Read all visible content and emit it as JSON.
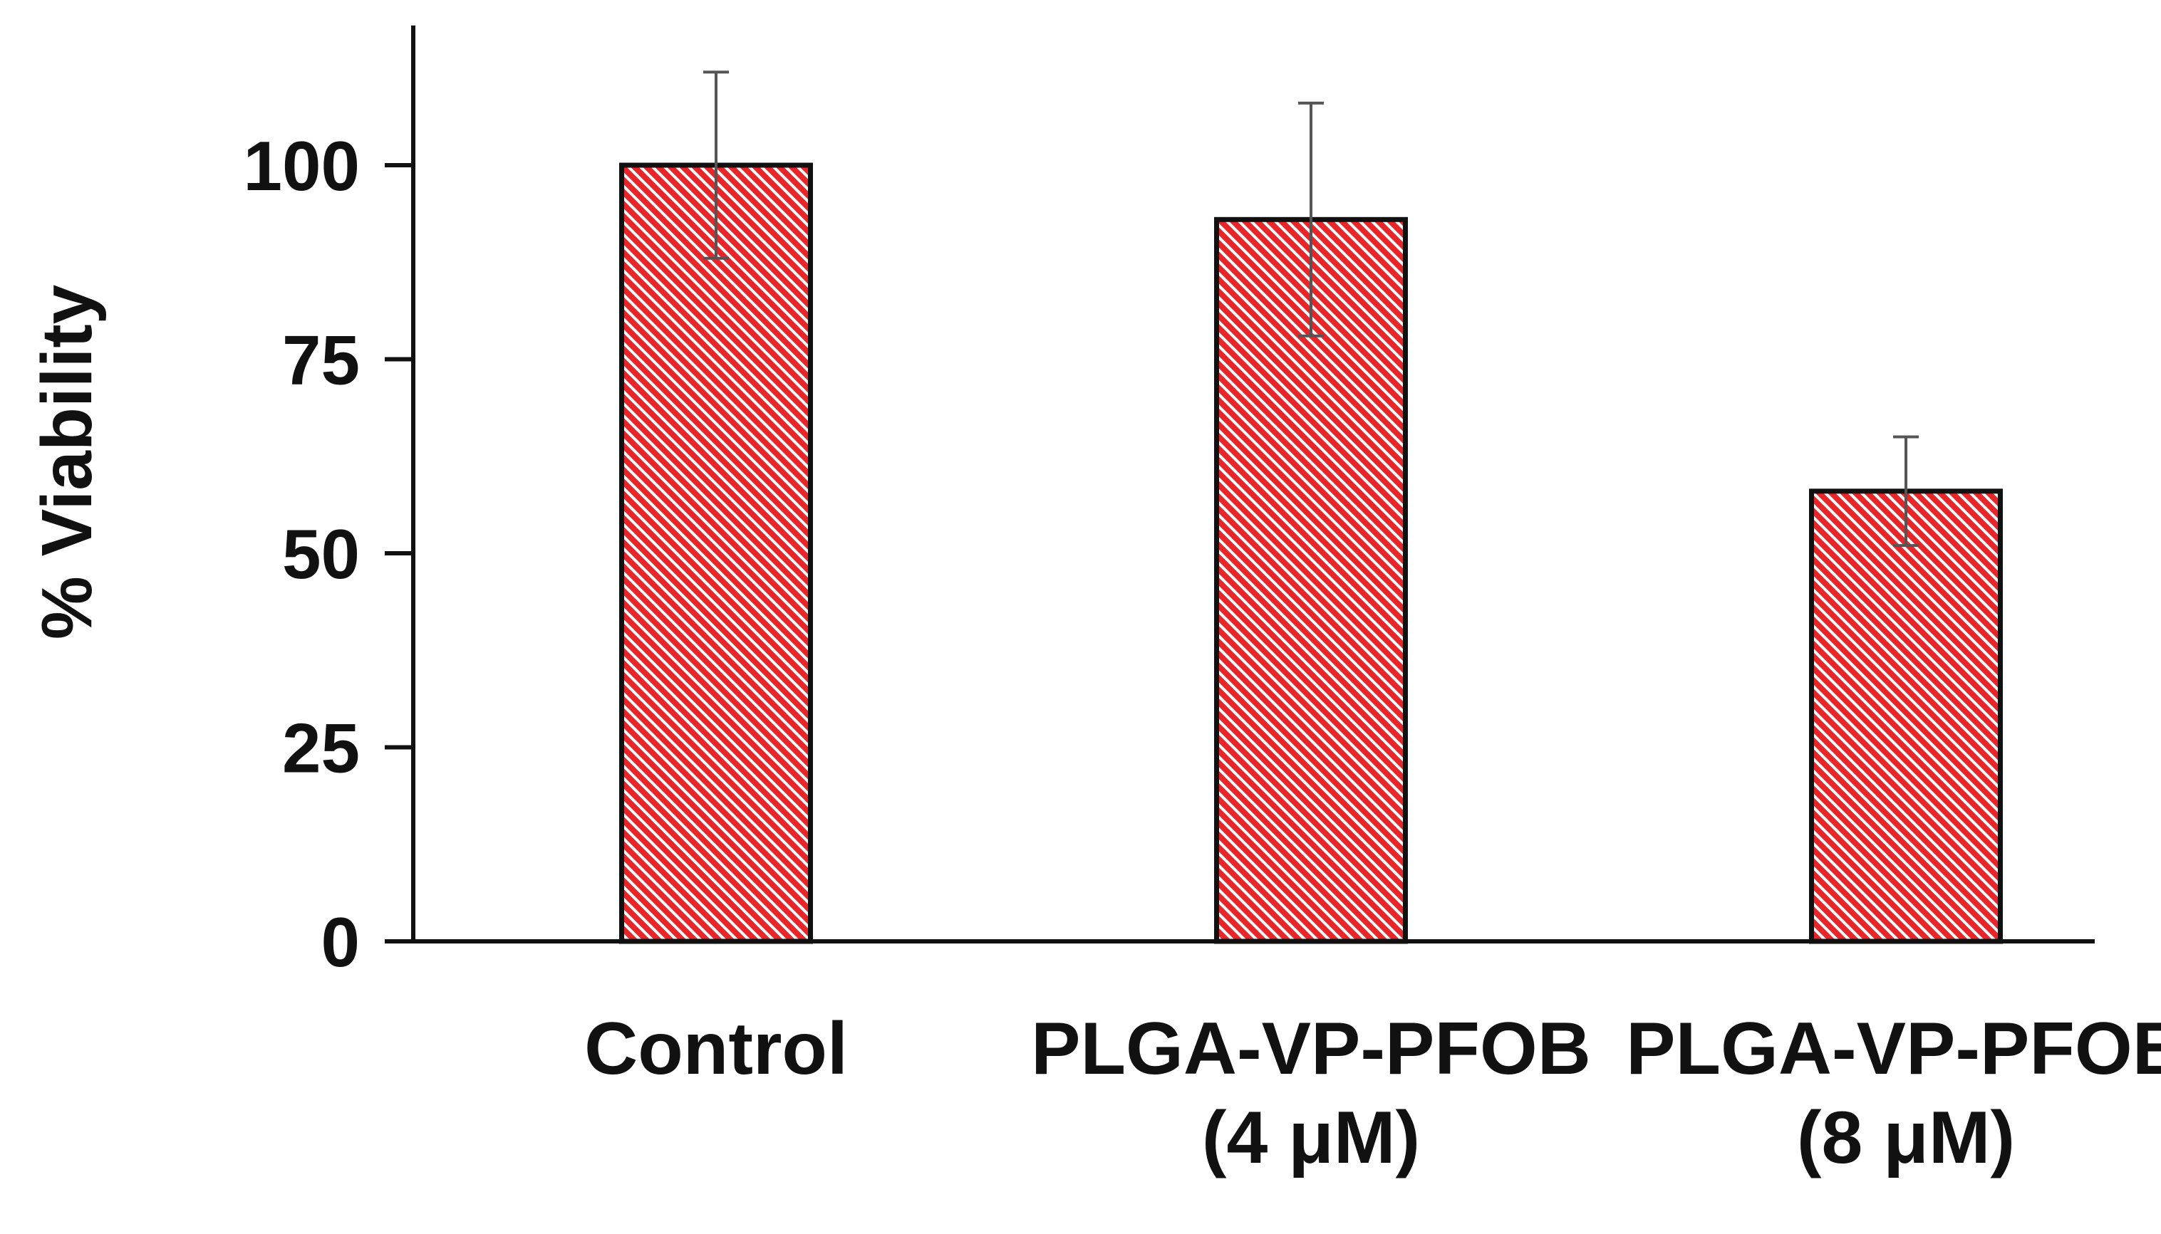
{
  "chart_data": {
    "type": "bar",
    "title": "",
    "xlabel": "",
    "ylabel": "% Viability",
    "ylim": [
      0,
      118
    ],
    "yticks": [
      0,
      25,
      50,
      75,
      100
    ],
    "grid": false,
    "categories": [
      [
        "Control"
      ],
      [
        "PLGA-VP-PFOB",
        "(4 μM)"
      ],
      [
        "PLGA-VP-PFOB",
        "(8 μM)"
      ]
    ],
    "values": [
      100,
      93,
      58
    ],
    "error": [
      12,
      15,
      7
    ],
    "bar_fill": "#e8262a",
    "bar_hatch": "#ffffff",
    "bar_edge": "#111111",
    "error_color": "#555555"
  }
}
